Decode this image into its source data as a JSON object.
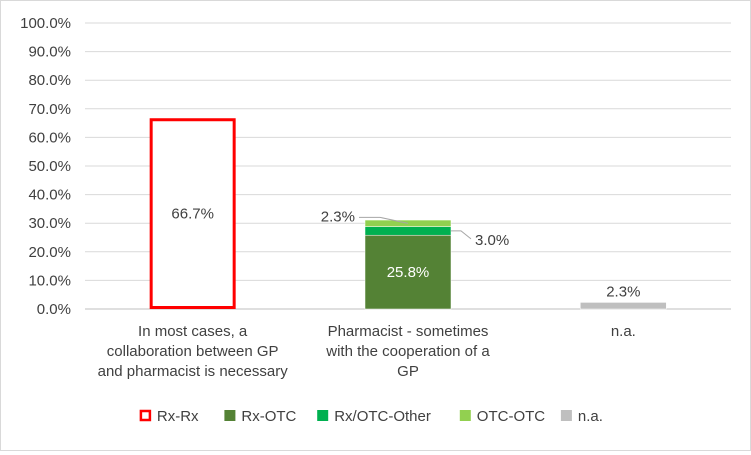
{
  "chart_data": {
    "type": "bar",
    "stacked": true,
    "categories": [
      [
        "In most cases, a",
        "collaboration between GP",
        "and pharmacist is necessary"
      ],
      [
        "Pharmacist - sometimes",
        "with the cooperation of a",
        "GP"
      ],
      [
        "n.a."
      ]
    ],
    "ylim": [
      0,
      100
    ],
    "yticks": [
      "0.0%",
      "10.0%",
      "20.0%",
      "30.0%",
      "40.0%",
      "50.0%",
      "60.0%",
      "70.0%",
      "80.0%",
      "90.0%",
      "100.0%"
    ],
    "grid": true,
    "legend_position": "bottom",
    "series": [
      {
        "name": "Rx-Rx",
        "color": "#ff0000",
        "style": "outline",
        "values": [
          66.7,
          0,
          0
        ],
        "labels": [
          "66.7%",
          "",
          ""
        ]
      },
      {
        "name": "Rx-OTC",
        "color": "#548235",
        "style": "fill",
        "values": [
          0,
          25.8,
          0
        ],
        "labels": [
          "",
          "25.8%",
          ""
        ]
      },
      {
        "name": "Rx/OTC-Other",
        "color": "#00b050",
        "style": "fill",
        "values": [
          0,
          3.0,
          0
        ],
        "labels": [
          "",
          "3.0%",
          ""
        ]
      },
      {
        "name": "OTC-OTC",
        "color": "#92d050",
        "style": "fill",
        "values": [
          0,
          2.3,
          0
        ],
        "labels": [
          "",
          "2.3%",
          ""
        ]
      },
      {
        "name": "n.a.",
        "color": "#bfbfbf",
        "style": "fill",
        "values": [
          0,
          0,
          2.3
        ],
        "labels": [
          "",
          "",
          "2.3%"
        ]
      }
    ]
  }
}
